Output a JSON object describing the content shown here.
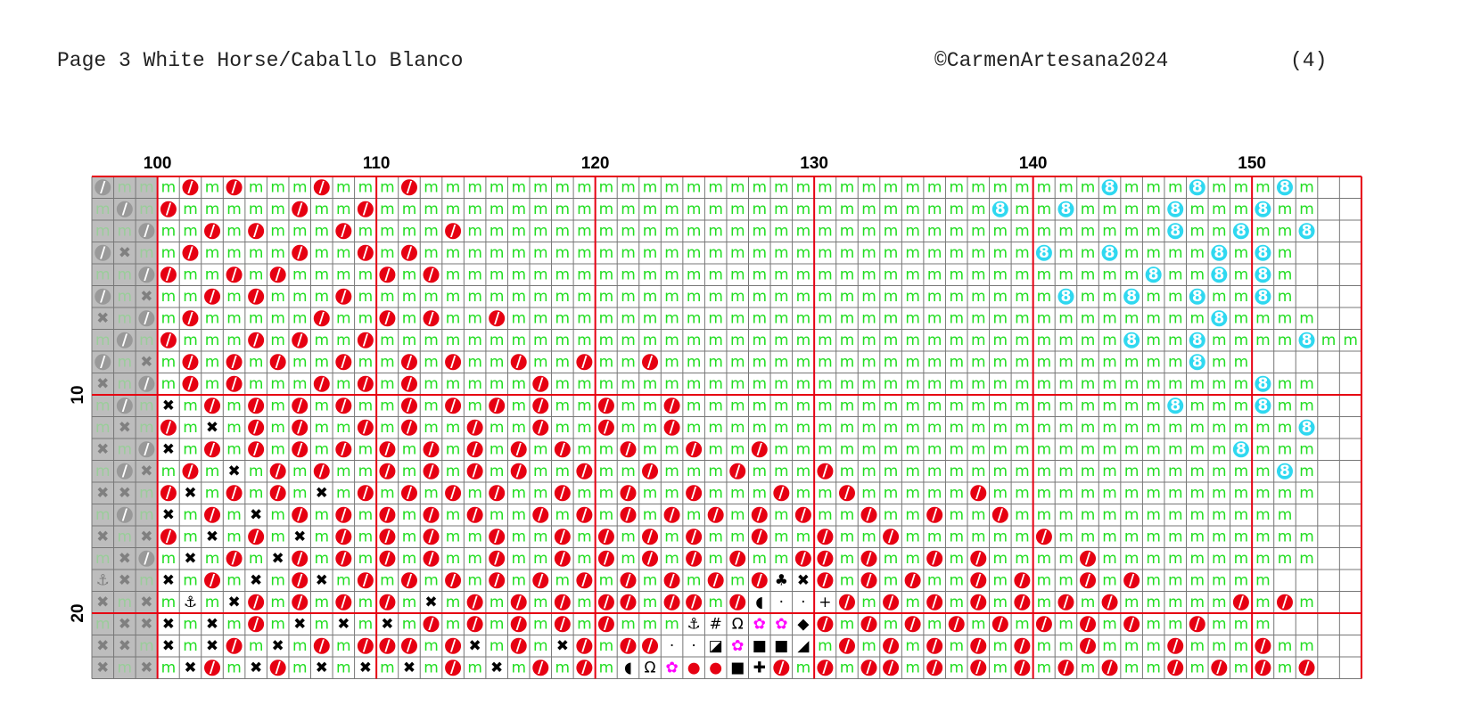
{
  "header": {
    "title": "Page 3  White Horse/Caballo Blanco",
    "copyright": "©CarmenArtesana2024",
    "page_number": "(4)"
  },
  "column_labels": [
    100,
    110,
    120,
    130,
    140,
    150
  ],
  "row_labels": [
    10,
    20
  ],
  "grid": {
    "first_column": 97,
    "rows": [
      "/mmm/m/mmm/mmm/mmmmmmmmmmmmmmmmmmmmmmmmmmmmmmm8mmm8mmm8m",
      "m/m/mmmmm/mm/mmmmmmmmmmmmmmmmmmmmmmmmmmmm8mm8mmmm8mmm8mm",
      "mm/mm/m/mmm/mmmm/mmmmmmmmmmmmmmmmmmmmmmmmmmmmmmmm8mm8mm8",
      "/✖mm/mmmm/mm/m/mmmmmmmmmmmmmmmmmmmmmmmmmmmm8mm8mmmm8m8m",
      "mm//mm/m/mmmm/m/mmmmmmmmmmmmmmmmmmmmmmmmmmmmmmmm8mm8m8m",
      "/m✖mm/m/mmm/mmmmmmmmmmmmmmmmmmmmmmmmmmmmmmmm8mm8mm8mm8m",
      "✖m/m/mmmmm/mm/m/mm/mmmmmmmmmmmmmmmmmmmmmmmmmmmmmmmm8mmmm",
      "m/m/mmm/m/mm/mmmmmmmmmmmmmmmmmmmmmmmmmmmmmmmmmm8mm8mmmm8mm",
      "/m✖m/m/m/mm/mm/m/mm/mm/mm/mmmmmmmmmmmmmmmmmmmmmmmm8mm",
      "✖m/m/m/mmm/m/m/mmmmm/mmmmmmmmmmmmmmmmmmmmmmmmmmmmmmmm8mm",
      "m/m✖m/m/m/m/mm/m/m/m/mm/mm/mmmmmmmmmmmmmmmmmmmmmm8mmm8mm",
      "m✖m/m✖m/m/mm/m/mm/mm/mm/mm/mmmmmmmmmmmmmmmmmmmmmmmmmmmm8",
      "✖m/✖m/m/m/m/m/m/m/m/m/mm/mm/mm/mmmmmmmmmmmmmmmmmmmmm8mmm",
      "m/✖m/m✖m/m/mm/m/m/m/mm/mm/mmm/mmm/mmmmmmmmmmmmmmmmmmmm8m",
      "✖✖m/✖m/m/m✖m/m/m/m/mm/mm/mm/mmm/mm/mmmmm/mmmmmmmmmmmmmmm",
      "m/m✖m/m✖m/m/m/m/m/mm/m/m/m/m/m/m/mm/mm/mm/mmmmmmmmmmmmm",
      "✖m✖/m✖m/m✖m/m/m/mm/mm/m/m/m/mm/mm/mm/mmmmmm/mmmmmmmmmmmm",
      "m✖/m✖m/m✖/m/m/m/mm/mm/m/m/m/m/mm//m/mm/m/mmmm/mmmmmmmmmm",
      "⚓✖m✖m/m✖m/✖m/m/m/m/m/m/m/m/m/m/♣✖/m/m/mm/m/mm/m/mmmmmm",
      "✖m✖m⚓m✖/m/m/m/m✖m/m/m/m//m//m/◖··+/m/m/m/m/m/m/mmmmm/m/m",
      "m✖✖✖m✖m/m✖m✖m✖m/m/m/m/m/mmm⚓#Ω✿✿◆/m/m/m/m/m/m/m/mm/mmm",
      "✖✖m✖m✖/m✖m/m///m/✖m/m✖/m//··◪✿■■◢m/m/m/m/m/mm/mmm/mmm/mm",
      "✖m✖m✖/m✖/m✖m✖m✖m/m✖m/m/m◖Ω✿●●■✚/m/m//m/m/m/m/m/mm/m/m/m/"
    ]
  }
}
